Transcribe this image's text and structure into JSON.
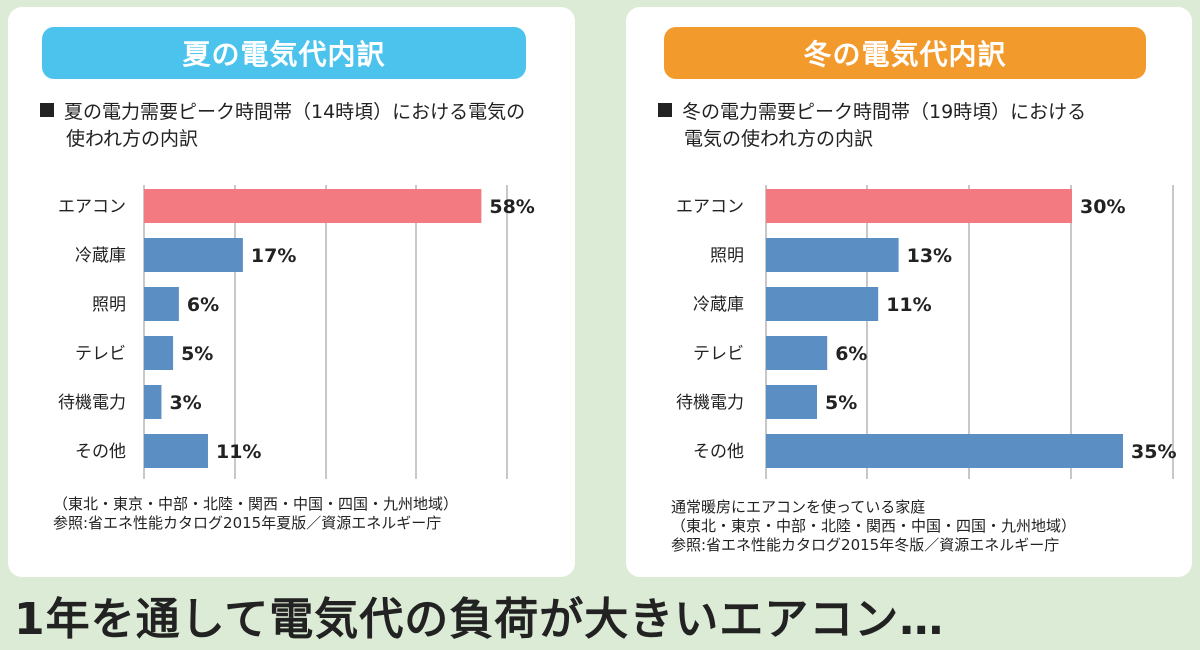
{
  "headline": "1年を通して電気代の負荷が大きいエアコン…",
  "summer": {
    "title": "夏の電気代内訳",
    "subtitle_line1": "夏の電力需要ピーク時間帯（14時頃）における電気の",
    "subtitle_line2": "使われ方の内訳",
    "note_lines": [
      "（東北・東京・中部・北陸・関西・中国・四国・九州地域）",
      "参照:省エネ性能カタログ2015年夏版／資源エネルギー庁"
    ],
    "header_color": "#4cc3ec"
  },
  "winter": {
    "title": "冬の電気代内訳",
    "subtitle_line1": "冬の電力需要ピーク時間帯（19時頃）における",
    "subtitle_line2": "電気の使われ方の内訳",
    "note_lines": [
      "通常暖房にエアコンを使っている家庭",
      "（東北・東京・中部・北陸・関西・中国・四国・九州地域）",
      "参照:省エネ性能カタログ2015年冬版／資源エネルギー庁"
    ],
    "header_color": "#f39a2c"
  },
  "chart_data": [
    {
      "type": "bar",
      "orientation": "horizontal",
      "categories": [
        "エアコン",
        "冷蔵庫",
        "照明",
        "テレビ",
        "待機電力",
        "その他"
      ],
      "values": [
        58,
        17,
        6,
        5,
        3,
        11
      ],
      "value_labels": [
        "58%",
        "17%",
        "6%",
        "5%",
        "3%",
        "11%"
      ],
      "unit": "%",
      "xlim": [
        0,
        60
      ],
      "grid": true,
      "colors": {
        "highlight": "#f27a80",
        "default": "#5b8ec2"
      }
    },
    {
      "type": "bar",
      "orientation": "horizontal",
      "categories": [
        "エアコン",
        "照明",
        "冷蔵庫",
        "テレビ",
        "待機電力",
        "その他"
      ],
      "values": [
        30,
        13,
        11,
        6,
        5,
        35
      ],
      "value_labels": [
        "30%",
        "13%",
        "11%",
        "6%",
        "5%",
        "35%"
      ],
      "unit": "%",
      "xlim": [
        0,
        35
      ],
      "grid": true,
      "colors": {
        "highlight": "#f27a80",
        "default": "#5b8ec2"
      }
    }
  ]
}
